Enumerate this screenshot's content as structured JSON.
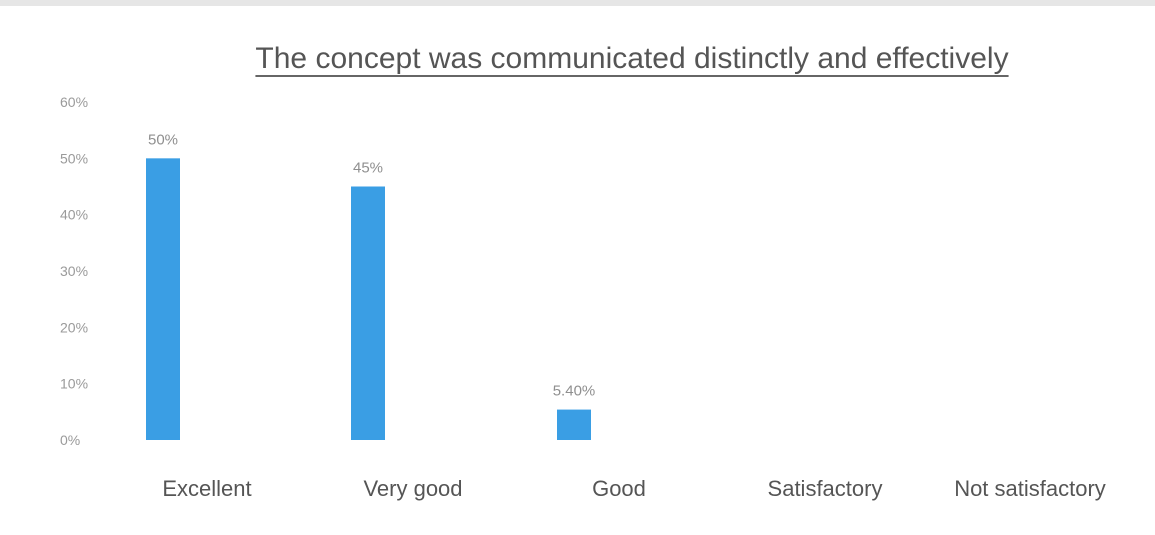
{
  "chart_data": {
    "type": "bar",
    "title": "The concept was communicated distinctly and effectively",
    "xlabel": "",
    "ylabel": "",
    "categories": [
      "Excellent",
      "Very good",
      "Good",
      "Satisfactory",
      "Not satisfactory"
    ],
    "values": [
      50,
      45,
      5.4,
      0,
      0
    ],
    "data_labels": [
      "50%",
      "45%",
      "5.40%",
      "",
      ""
    ],
    "ylim": [
      0,
      60
    ],
    "yticks": [
      0,
      10,
      20,
      30,
      40,
      50,
      60
    ],
    "ytick_labels": [
      "0%",
      "10%",
      "20%",
      "30%",
      "40%",
      "50%",
      "60%"
    ],
    "grid": false,
    "legend": "none",
    "bar_color": "#3a9ee4",
    "title_underlined": true
  }
}
